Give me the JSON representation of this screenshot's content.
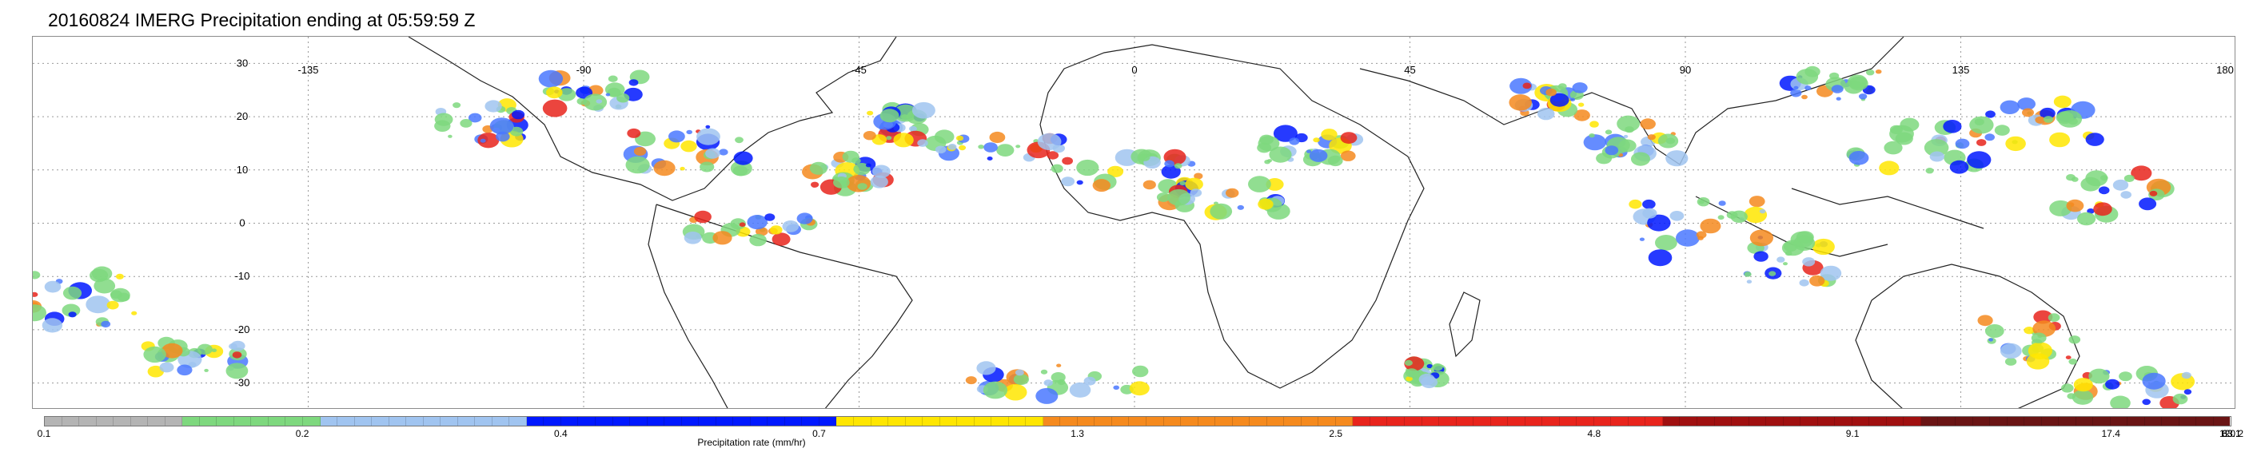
{
  "title": "20160824 IMERG Precipitation ending at 05:59:59 Z",
  "map": {
    "lon_labels": [
      "-135",
      "-90",
      "-45",
      "0",
      "45",
      "90",
      "135",
      "180"
    ],
    "lat_labels": [
      "30",
      "20",
      "10",
      "0",
      "-10",
      "-20",
      "-30"
    ],
    "lon_range": [
      -180,
      180
    ],
    "lat_range": [
      -35,
      35
    ],
    "gridlines": "dotted"
  },
  "colorbar": {
    "title": "Precipitation rate (mm/hr)",
    "tick_labels": [
      "0.1",
      "0.2",
      "0.4",
      "0.7",
      "1.3",
      "2.5",
      "4.8",
      "9.1",
      "17.4",
      "33.1",
      "63.1",
      "120.2"
    ],
    "segments": [
      {
        "color": "#b4b4b4",
        "count": 8
      },
      {
        "color": "#7ed87e",
        "count": 8
      },
      {
        "color": "#a0c4f0",
        "count": 12
      },
      {
        "color": "#0018ff",
        "count": 18
      },
      {
        "color": "#ffe600",
        "count": 12
      },
      {
        "color": "#f58a1e",
        "count": 18
      },
      {
        "color": "#e8241c",
        "count": 18
      },
      {
        "color": "#a01010",
        "count": 15
      },
      {
        "color": "#6a1414",
        "count": 18
      }
    ]
  }
}
